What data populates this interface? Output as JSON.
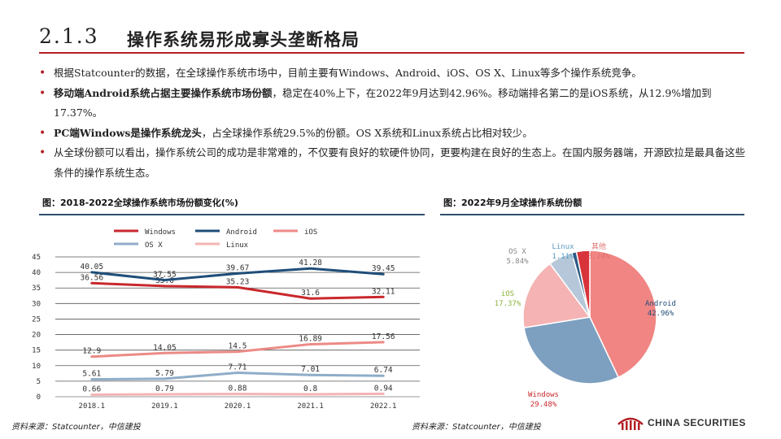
{
  "header": {
    "section_number": "2.1.3",
    "title": "操作系统易形成寡头垄断格局"
  },
  "bullets": [
    {
      "bold": "",
      "text": "根据Statcounter的数据，在全球操作系统市场中，目前主要有Windows、Android、iOS、OS X、Linux等多个操作系统竞争。"
    },
    {
      "bold": "移动端Android系统占据主要操作系统市场份额",
      "text": "，稳定在40%上下，在2022年9月达到42.96%。移动端排名第二的是iOS系统，从12.9%增加到17.37%。"
    },
    {
      "bold": "PC端Windows是操作系统龙头",
      "text": "，占全球操作系统29.5%的份额。OS X系统和Linux系统占比相对较少。"
    },
    {
      "bold": "",
      "text": "从全球份额可以看出，操作系统公司的成功是非常难的，不仅要有良好的软硬件协同，更要构建在良好的生态上。在国内服务器端，开源欧拉是最具备这些条件的操作系统生态。"
    }
  ],
  "figures": {
    "left_title": "图：2018-2022全球操作系统市场份额变化(%)",
    "right_title": "图：2022年9月全球操作系统份额",
    "left_source": "资料来源：Statcounter，中信建投",
    "right_source": "资料来源：Statcounter，中信建投"
  },
  "logo": {
    "text": "CHINA SECURITIES",
    "color": "#b21f24"
  },
  "chart_data": [
    {
      "type": "line",
      "title": "图：2018-2022全球操作系统市场份额变化(%)",
      "categories": [
        "2018.1",
        "2019.1",
        "2020.1",
        "2021.1",
        "2022.1"
      ],
      "ylim": [
        0,
        45
      ],
      "yticks": [
        "0",
        "5",
        "10",
        "15",
        "20",
        "25",
        "30",
        "35",
        "40",
        "45"
      ],
      "grid": true,
      "legend": "top",
      "series": [
        {
          "name": "Windows",
          "color": "#c9282d",
          "values": [
            36.56,
            35.6,
            35.23,
            31.6,
            32.11
          ],
          "labels": [
            "36.56",
            "35.6",
            "35.23",
            "31.6",
            "32.11"
          ]
        },
        {
          "name": "Android",
          "color": "#1f4e79",
          "values": [
            40.05,
            37.55,
            39.67,
            41.28,
            39.45
          ],
          "labels": [
            "40.05",
            "37.55",
            "39.67",
            "41.28",
            "39.45"
          ]
        },
        {
          "name": "iOS",
          "color": "#ec8a86",
          "values": [
            12.9,
            14.05,
            14.5,
            16.89,
            17.56
          ],
          "labels": [
            "12.9",
            "14.05",
            "14.5",
            "16.89",
            "17.56"
          ]
        },
        {
          "name": "OS X",
          "color": "#8fadc8",
          "values": [
            5.61,
            5.79,
            7.71,
            7.01,
            6.74
          ],
          "labels": [
            "5.61",
            "5.79",
            "7.71",
            "7.01",
            "6.74"
          ]
        },
        {
          "name": "Linux",
          "color": "#f4b4b4",
          "values": [
            0.66,
            0.79,
            0.88,
            0.8,
            0.94
          ],
          "labels": [
            "0.66",
            "0.79",
            "0.88",
            "0.8",
            "0.94"
          ]
        }
      ]
    },
    {
      "type": "pie",
      "title": "图：2022年9月全球操作系统份额",
      "slices": [
        {
          "name": "Android",
          "value": 42.96,
          "label": "42.96%",
          "color": "#f08583",
          "label_color": "#1f4e79"
        },
        {
          "name": "Windows",
          "value": 29.48,
          "label": "29.48%",
          "color": "#7d9fc0",
          "label_color": "#c9282d"
        },
        {
          "name": "iOS",
          "value": 17.37,
          "label": "17.37%",
          "color": "#f5b3b3",
          "label_color": "#8ab43a"
        },
        {
          "name": "OS X",
          "value": 5.84,
          "label": "5.84%",
          "color": "#b5c7d9",
          "label_color": "#888888"
        },
        {
          "name": "Linux",
          "value": 1.11,
          "label": "1.11%",
          "color": "#2c5a85",
          "label_color": "#5a9bc0"
        },
        {
          "name": "其他",
          "value": 3.24,
          "label": "3.24%",
          "color": "#d8333a",
          "label_color": "#e07070"
        }
      ]
    }
  ]
}
